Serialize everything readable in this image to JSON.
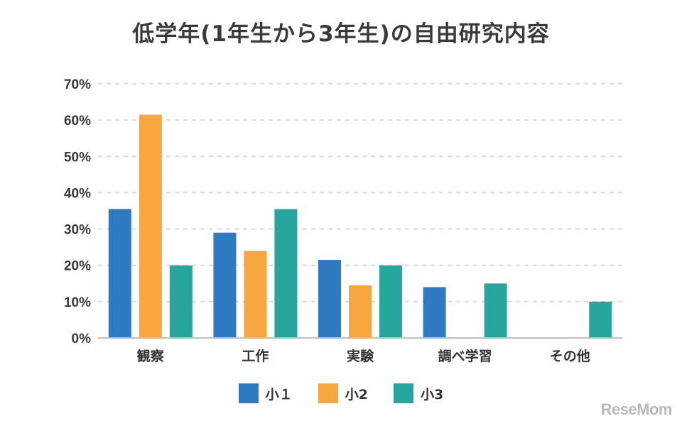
{
  "chart_data": {
    "type": "bar",
    "title": "低学年(1年生から3年生)の自由研究内容",
    "xlabel": "",
    "ylabel": "",
    "categories": [
      "観察",
      "工作",
      "実験",
      "調べ学習",
      "その他"
    ],
    "series": [
      {
        "name": "小１",
        "values": [
          35.5,
          29,
          21.5,
          14,
          null
        ]
      },
      {
        "name": "小2",
        "values": [
          61.5,
          24,
          14.5,
          null,
          null
        ]
      },
      {
        "name": "小3",
        "values": [
          20,
          35.5,
          20,
          15,
          10
        ]
      }
    ],
    "ylim": [
      0,
      70
    ],
    "yticks": [
      "0%",
      "10%",
      "20%",
      "30%",
      "40%",
      "50%",
      "60%",
      "70%"
    ],
    "grid": true,
    "legend": "bottom"
  },
  "colors": {
    "series": [
      "#2e7bc4",
      "#f8a63f",
      "#27a69e"
    ],
    "grid": "#d9d9d9",
    "axis": "#bfbfbf"
  },
  "logo": "ReseMom"
}
